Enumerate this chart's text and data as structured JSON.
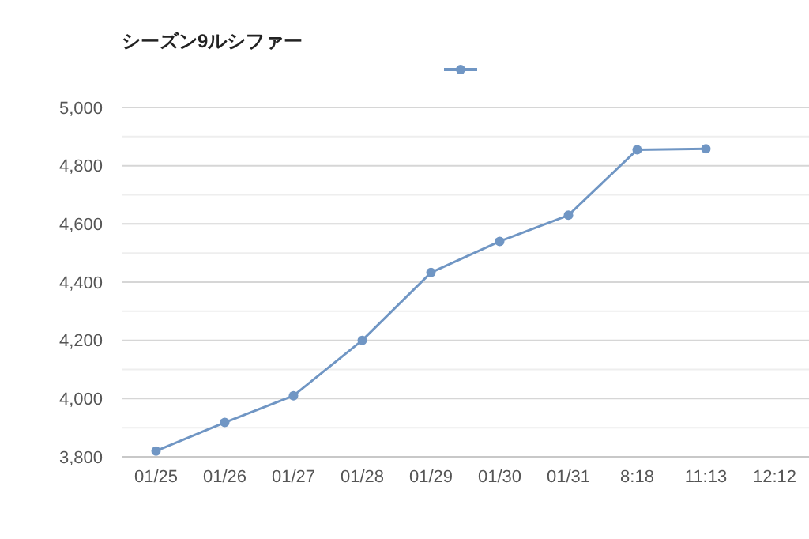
{
  "chart_data": {
    "type": "line",
    "title": "シーズン9ルシファー",
    "categories": [
      "01/25",
      "01/26",
      "01/27",
      "01/28",
      "01/29",
      "01/30",
      "01/31",
      "8:18",
      "11:13",
      "12:12"
    ],
    "series": [
      {
        "color": "#7096c4",
        "values": [
          3820,
          3918,
          4010,
          4200,
          4433,
          4540,
          4630,
          4855,
          4858,
          null
        ]
      }
    ],
    "ylim": [
      3800,
      5000
    ],
    "yticks": [
      {
        "value": 3800,
        "label": "3,800"
      },
      {
        "value": 3900,
        "label": null
      },
      {
        "value": 4000,
        "label": "4,000"
      },
      {
        "value": 4100,
        "label": null
      },
      {
        "value": 4200,
        "label": "4,200"
      },
      {
        "value": 4300,
        "label": null
      },
      {
        "value": 4400,
        "label": "4,400"
      },
      {
        "value": 4500,
        "label": null
      },
      {
        "value": 4600,
        "label": "4,600"
      },
      {
        "value": 4700,
        "label": null
      },
      {
        "value": 4800,
        "label": "4,800"
      },
      {
        "value": 4900,
        "label": null
      },
      {
        "value": 5000,
        "label": "5,000"
      }
    ],
    "grid": "y",
    "marker": "circle",
    "line_style": "solid"
  }
}
